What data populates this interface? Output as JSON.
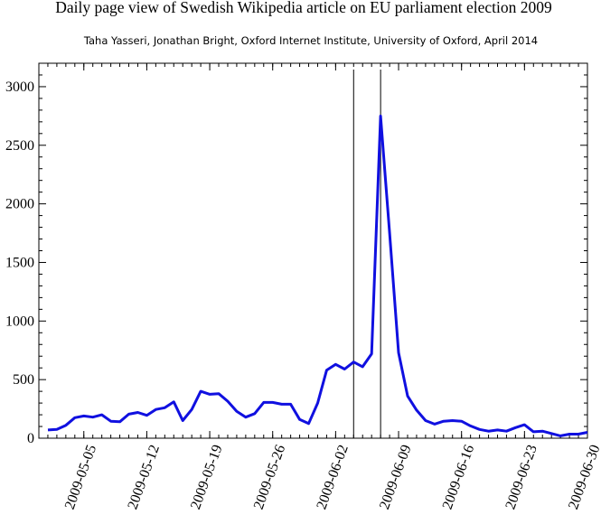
{
  "chart_data": {
    "type": "line",
    "title": "Daily page view of Swedish Wikipedia article on EU parliament election 2009",
    "subtitle": "Taha Yasseri, Jonathan Bright, Oxford Internet Institute, University of Oxford, April 2014",
    "xlabel": "",
    "ylabel": "",
    "xlim": [
      "2009-04-30",
      "2009-06-30"
    ],
    "ylim": [
      0,
      3200
    ],
    "y_ticks": [
      0,
      500,
      1000,
      1500,
      2000,
      2500,
      3000
    ],
    "x_ticks": [
      "2009-05-05",
      "2009-05-12",
      "2009-05-19",
      "2009-05-26",
      "2009-06-02",
      "2009-06-09",
      "2009-06-16",
      "2009-06-23",
      "2009-06-30"
    ],
    "grid": false,
    "line_color": "#1010e0",
    "vertical_markers": [
      "2009-06-04",
      "2009-06-07"
    ],
    "series": [
      {
        "x": [
          "2009-05-01",
          "2009-05-02",
          "2009-05-03",
          "2009-05-04",
          "2009-05-05",
          "2009-05-06",
          "2009-05-07",
          "2009-05-08",
          "2009-05-09",
          "2009-05-10",
          "2009-05-11",
          "2009-05-12",
          "2009-05-13",
          "2009-05-14",
          "2009-05-15",
          "2009-05-16",
          "2009-05-17",
          "2009-05-18",
          "2009-05-19",
          "2009-05-20",
          "2009-05-21",
          "2009-05-22",
          "2009-05-23",
          "2009-05-24",
          "2009-05-25",
          "2009-05-26",
          "2009-05-27",
          "2009-05-28",
          "2009-05-29",
          "2009-05-30",
          "2009-05-31",
          "2009-06-01",
          "2009-06-02",
          "2009-06-03",
          "2009-06-04",
          "2009-06-05",
          "2009-06-06",
          "2009-06-07",
          "2009-06-08",
          "2009-06-09",
          "2009-06-10",
          "2009-06-11",
          "2009-06-12",
          "2009-06-13",
          "2009-06-14",
          "2009-06-15",
          "2009-06-16",
          "2009-06-17",
          "2009-06-18",
          "2009-06-19",
          "2009-06-20",
          "2009-06-21",
          "2009-06-22",
          "2009-06-23",
          "2009-06-24",
          "2009-06-25",
          "2009-06-26",
          "2009-06-27",
          "2009-06-28",
          "2009-06-29",
          "2009-06-30"
        ],
        "values": [
          70,
          75,
          110,
          175,
          190,
          180,
          200,
          145,
          140,
          205,
          220,
          195,
          245,
          260,
          310,
          150,
          245,
          400,
          375,
          380,
          315,
          230,
          180,
          210,
          305,
          305,
          290,
          290,
          160,
          125,
          300,
          580,
          630,
          590,
          650,
          610,
          720,
          2750,
          1750,
          730,
          360,
          240,
          150,
          120,
          145,
          150,
          145,
          105,
          75,
          60,
          70,
          60,
          90,
          115,
          55,
          60,
          40,
          20,
          35,
          35,
          50
        ]
      }
    ]
  }
}
